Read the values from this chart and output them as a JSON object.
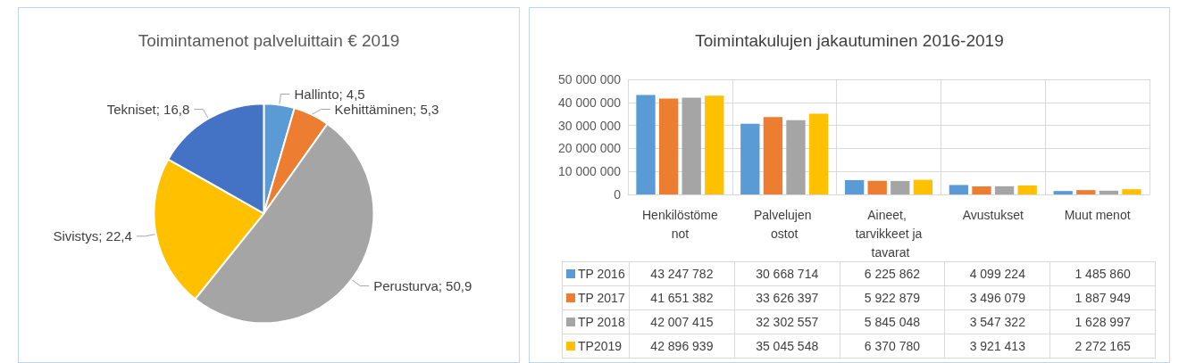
{
  "chart_data": [
    {
      "type": "pie",
      "title": "Toimintamenot palveluittain € 2019",
      "categories": [
        "Hallinto",
        "Kehittäminen",
        "Perusturva",
        "Sivistys",
        "Tekniset"
      ],
      "values": [
        4.5,
        5.3,
        50.9,
        22.4,
        16.8
      ],
      "value_labels": [
        "4,5",
        "5,3",
        "50,9",
        "22,4",
        "16,8"
      ],
      "colors": [
        "#5b9bd5",
        "#ed7d31",
        "#a5a5a5",
        "#ffc000",
        "#4472c4"
      ],
      "legend": false
    },
    {
      "type": "bar",
      "title": "Toimintakulujen jakautuminen 2016-2019",
      "categories": [
        "Henkilöstömenot",
        "Palvelujen ostot",
        "Aineet, tarvikkeet ja tavarat",
        "Avustukset",
        "Muut menot"
      ],
      "series": [
        {
          "name": "TP 2016",
          "color": "#5b9bd5",
          "values": [
            43247782,
            30668714,
            6225862,
            4099224,
            1485860
          ],
          "value_labels": [
            "43 247 782",
            "30 668 714",
            "6 225 862",
            "4 099 224",
            "1 485 860"
          ]
        },
        {
          "name": "TP 2017",
          "color": "#ed7d31",
          "values": [
            41651382,
            33626397,
            5922879,
            3496079,
            1887949
          ],
          "value_labels": [
            "41 651 382",
            "33 626 397",
            "5 922 879",
            "3 496 079",
            "1 887 949"
          ]
        },
        {
          "name": "TP 2018",
          "color": "#a5a5a5",
          "values": [
            42007415,
            32302557,
            5845048,
            3547322,
            1628997
          ],
          "value_labels": [
            "42 007 415",
            "32 302 557",
            "5 845 048",
            "3 547 322",
            "1 628 997"
          ]
        },
        {
          "name": "TP2019",
          "color": "#ffc000",
          "values": [
            42896939,
            35045548,
            6370780,
            3921413,
            2272165
          ],
          "value_labels": [
            "42 896 939",
            "35 045 548",
            "6 370 780",
            "3 921 413",
            "2 272 165"
          ]
        }
      ],
      "ylim": [
        0,
        50000000
      ],
      "yticks": [
        0,
        {
          "value": 10000000,
          "label": "10 000 000"
        },
        {
          "value": 20000000,
          "label": "20 000 000"
        },
        {
          "value": 30000000,
          "label": "30 000 000"
        },
        {
          "value": 40000000,
          "label": "40 000 000"
        },
        {
          "value": 50000000,
          "label": "50 000 000"
        }
      ],
      "grid": true,
      "legend": "bottom"
    }
  ]
}
